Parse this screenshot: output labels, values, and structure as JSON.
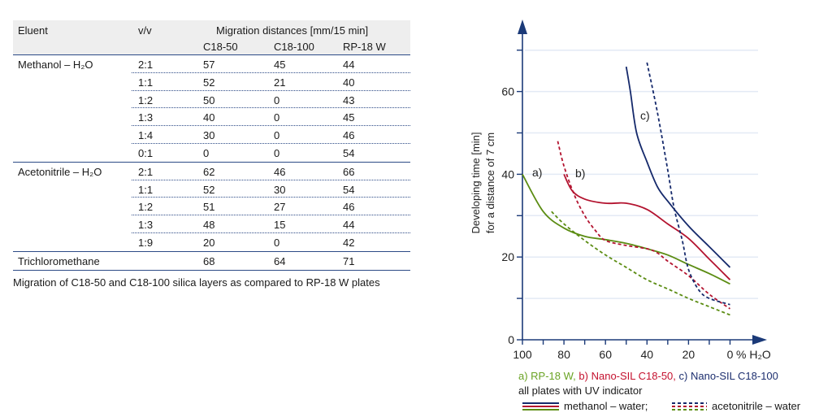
{
  "table": {
    "headers": {
      "eluent": "Eluent",
      "vv": "v/v",
      "group": "Migration distances [mm/15 min]",
      "cols": [
        "C18-50",
        "C18-100",
        "RP-18 W"
      ]
    },
    "groups": [
      {
        "eluent": "Methanol – H₂O",
        "rows": [
          [
            "2:1",
            "57",
            "45",
            "44"
          ],
          [
            "1:1",
            "52",
            "21",
            "40"
          ],
          [
            "1:2",
            "50",
            "0",
            "43"
          ],
          [
            "1:3",
            "40",
            "0",
            "45"
          ],
          [
            "1:4",
            "30",
            "0",
            "46"
          ],
          [
            "0:1",
            "0",
            "0",
            "54"
          ]
        ]
      },
      {
        "eluent": "Acetonitrile – H₂O",
        "rows": [
          [
            "2:1",
            "62",
            "46",
            "66"
          ],
          [
            "1:1",
            "52",
            "30",
            "54"
          ],
          [
            "1:2",
            "51",
            "27",
            "46"
          ],
          [
            "1:3",
            "48",
            "15",
            "44"
          ],
          [
            "1:9",
            "20",
            "0",
            "42"
          ]
        ]
      },
      {
        "eluent": "Trichloromethane",
        "rows": [
          [
            "",
            "68",
            "64",
            "71"
          ]
        ]
      }
    ],
    "caption": "Migration of C18-50 and C18-100 silica layers as compared to RP-18 W plates"
  },
  "chart_data": {
    "type": "line",
    "ylabel": [
      "Developing time [min]",
      "for a distance of  7 cm"
    ],
    "xlabel": "% H₂O",
    "xlim": [
      100,
      0
    ],
    "ylim": [
      0,
      70
    ],
    "xticks": [
      "100",
      "80",
      "60",
      "40",
      "20",
      "0"
    ],
    "yticks": [
      "0",
      "20",
      "40",
      "60"
    ],
    "grid": true,
    "series": [
      {
        "label": "a)",
        "material": "RP-18 W",
        "eluent": "methanol – water",
        "style": "solid",
        "color": "#5b8c12",
        "points": [
          [
            100,
            40
          ],
          [
            90,
            31
          ],
          [
            80,
            27
          ],
          [
            70,
            25
          ],
          [
            60,
            24.2
          ],
          [
            50,
            23.3
          ],
          [
            40,
            22
          ],
          [
            30,
            20.5
          ],
          [
            20,
            18.2
          ],
          [
            10,
            16
          ],
          [
            0,
            13.5
          ]
        ]
      },
      {
        "label": "a)",
        "material": "RP-18 W",
        "eluent": "acetonitrile – water",
        "style": "dashed",
        "color": "#5b8c12",
        "points": [
          [
            86,
            31
          ],
          [
            80,
            28
          ],
          [
            70,
            24
          ],
          [
            60,
            20.5
          ],
          [
            50,
            17.5
          ],
          [
            40,
            14.5
          ],
          [
            30,
            12.3
          ],
          [
            20,
            10
          ],
          [
            10,
            8
          ],
          [
            0,
            6
          ]
        ]
      },
      {
        "label": "b)",
        "material": "Nano-SIL C18-50",
        "eluent": "methanol – water",
        "style": "solid",
        "color": "#b3132f",
        "points": [
          [
            80,
            40
          ],
          [
            76,
            36
          ],
          [
            70,
            34
          ],
          [
            60,
            33
          ],
          [
            50,
            33
          ],
          [
            40,
            31.5
          ],
          [
            30,
            28
          ],
          [
            20,
            24.5
          ],
          [
            10,
            19.5
          ],
          [
            0,
            14.5
          ]
        ]
      },
      {
        "label": "b)",
        "material": "Nano-SIL C18-50",
        "eluent": "acetonitrile – water",
        "style": "dashed",
        "color": "#b3132f",
        "points": [
          [
            83,
            48
          ],
          [
            80,
            42
          ],
          [
            75,
            35
          ],
          [
            70,
            30
          ],
          [
            65,
            26.5
          ],
          [
            60,
            24
          ],
          [
            50,
            22.8
          ],
          [
            40,
            22
          ],
          [
            35,
            21
          ],
          [
            30,
            19
          ],
          [
            20,
            15.5
          ],
          [
            10,
            11
          ],
          [
            0,
            7.5
          ]
        ]
      },
      {
        "label": "c)",
        "material": "Nano-SIL C18-100",
        "eluent": "methanol – water",
        "style": "solid",
        "color": "#15296b",
        "points": [
          [
            50,
            66
          ],
          [
            48,
            60
          ],
          [
            45,
            50
          ],
          [
            40,
            43
          ],
          [
            35,
            37
          ],
          [
            30,
            33.5
          ],
          [
            20,
            27.5
          ],
          [
            10,
            22.5
          ],
          [
            0,
            17.5
          ]
        ]
      },
      {
        "label": "c)",
        "material": "Nano-SIL C18-100",
        "eluent": "acetonitrile – water",
        "style": "dashed",
        "color": "#15296b",
        "points": [
          [
            40,
            67
          ],
          [
            35,
            55
          ],
          [
            30,
            41
          ],
          [
            27,
            32
          ],
          [
            23,
            24
          ],
          [
            20,
            17
          ],
          [
            15,
            12
          ],
          [
            10,
            10
          ],
          [
            0,
            8.5
          ]
        ]
      }
    ],
    "annotations": [
      "a)",
      "b)",
      "c)"
    ],
    "legend": {
      "materials": [
        {
          "text": "a) RP-18 W,",
          "color": "#6aa324"
        },
        {
          "text": "b) Nano-SIL C18-50,",
          "color": "#c4122f"
        },
        {
          "text": "c) Nano-SIL C18-100",
          "color": "#1d2f6f"
        }
      ],
      "note": "all plates with UV indicator",
      "solid": "methanol – water;",
      "dashed": "acetonitrile – water"
    }
  }
}
